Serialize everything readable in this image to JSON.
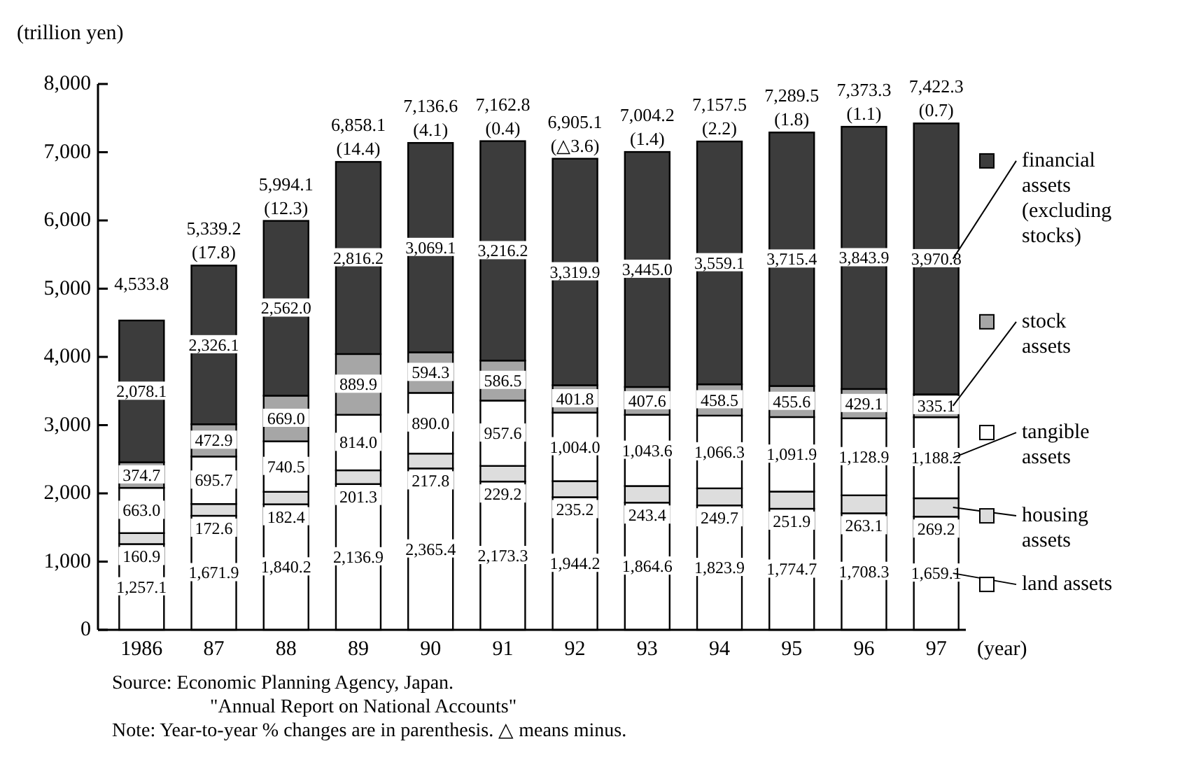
{
  "chart_data": {
    "type": "bar",
    "stacked": true,
    "ylabel": "(trillion yen)",
    "xlabel": "(year)",
    "categories": [
      "1986",
      "87",
      "88",
      "89",
      "90",
      "91",
      "92",
      "93",
      "94",
      "95",
      "96",
      "97"
    ],
    "ylim": [
      0,
      8000
    ],
    "yticks": [
      0,
      {
        "value": 1000,
        "label": "1,000"
      },
      {
        "value": 2000,
        "label": "2,000"
      },
      {
        "value": 3000,
        "label": "3,000"
      },
      {
        "value": 4000,
        "label": "4,000"
      },
      {
        "value": 5000,
        "label": "5,000"
      },
      {
        "value": 6000,
        "label": "6,000"
      },
      {
        "value": 7000,
        "label": "7,000"
      },
      {
        "value": 8000,
        "label": "8,000"
      }
    ],
    "legend": "right",
    "series": [
      {
        "name": "land assets",
        "color": "#ffffff",
        "values": [
          1257.1,
          1671.9,
          1840.2,
          2136.9,
          2365.4,
          2173.3,
          1944.2,
          1864.6,
          1823.9,
          1774.7,
          1708.3,
          1659.1
        ],
        "value_labels": [
          "1,257.1",
          "1,671.9",
          "1,840.2",
          "2,136.9",
          "2,365.4",
          "2,173.3",
          "1,944.2",
          "1,864.6",
          "1,823.9",
          "1,774.7",
          "1,708.3",
          "1,659.1"
        ]
      },
      {
        "name": "housing assets",
        "color": "#dddddd",
        "values": [
          160.9,
          172.6,
          182.4,
          201.3,
          217.8,
          229.2,
          235.2,
          243.4,
          249.7,
          251.9,
          263.1,
          269.2
        ],
        "value_labels": [
          "160.9",
          "172.6",
          "182.4",
          "201.3",
          "217.8",
          "229.2",
          "235.2",
          "243.4",
          "249.7",
          "251.9",
          "263.1",
          "269.2"
        ]
      },
      {
        "name": "tangible assets",
        "color": "#ffffff",
        "values": [
          663.0,
          695.7,
          740.5,
          814.0,
          890.0,
          957.6,
          1004.0,
          1043.6,
          1066.3,
          1091.9,
          1128.9,
          1188.2
        ],
        "value_labels": [
          "663.0",
          "695.7",
          "740.5",
          "814.0",
          "890.0",
          "957.6",
          "1,004.0",
          "1,043.6",
          "1,066.3",
          "1,091.9",
          "1,128.9",
          "1,188.2"
        ]
      },
      {
        "name": "stock assets",
        "color": "#a6a6a6",
        "values": [
          374.7,
          472.9,
          669.0,
          889.9,
          594.3,
          586.5,
          401.8,
          407.6,
          458.5,
          455.6,
          429.1,
          335.1
        ],
        "value_labels": [
          "374.7",
          "472.9",
          "669.0",
          "889.9",
          "594.3",
          "586.5",
          "401.8",
          "407.6",
          "458.5",
          "455.6",
          "429.1",
          "335.1"
        ]
      },
      {
        "name": "financial assets (excluding stocks)",
        "color": "#3c3c3c",
        "values": [
          2078.1,
          2326.1,
          2562.0,
          2816.2,
          3069.1,
          3216.2,
          3319.9,
          3445.0,
          3559.1,
          3715.4,
          3843.9,
          3970.8
        ],
        "value_labels": [
          "2,078.1",
          "2,326.1",
          "2,562.0",
          "2,816.2",
          "3,069.1",
          "3,216.2",
          "3,319.9",
          "3,445.0",
          "3,559.1",
          "3,715.4",
          "3,843.9",
          "3,970.8"
        ]
      }
    ],
    "totals": [
      "4,533.8",
      "5,339.2",
      "5,994.1",
      "6,858.1",
      "7,136.6",
      "7,162.8",
      "6,905.1",
      "7,004.2",
      "7,157.5",
      "7,289.5",
      "7,373.3",
      "7,422.3"
    ],
    "annotations": [
      {
        "text": "(17.8)",
        "x": "87",
        "y": 5339.2
      },
      {
        "text": "(12.3)",
        "x": "88",
        "y": 5994.1
      },
      {
        "text": "(14.4)",
        "x": "89",
        "y": 6858.1
      },
      {
        "text": "(4.1)",
        "x": "90",
        "y": 7136.6
      },
      {
        "text": "(0.4)",
        "x": "91",
        "y": 7162.8
      },
      {
        "text": "(△3.6)",
        "x": "92",
        "y": 6905.1
      },
      {
        "text": "(1.4)",
        "x": "93",
        "y": 7004.2
      },
      {
        "text": "(2.2)",
        "x": "94",
        "y": 7157.5
      },
      {
        "text": "(1.8)",
        "x": "95",
        "y": 7289.5
      },
      {
        "text": "(1.1)",
        "x": "96",
        "y": 7373.3
      },
      {
        "text": "(0.7)",
        "x": "97",
        "y": 7422.3
      },
      "Source: Economic Planning Agency, Japan.",
      "\"Annual Report on National Accounts\"",
      "Note: Year-to-year % changes are in parenthesis. △ means minus."
    ]
  }
}
